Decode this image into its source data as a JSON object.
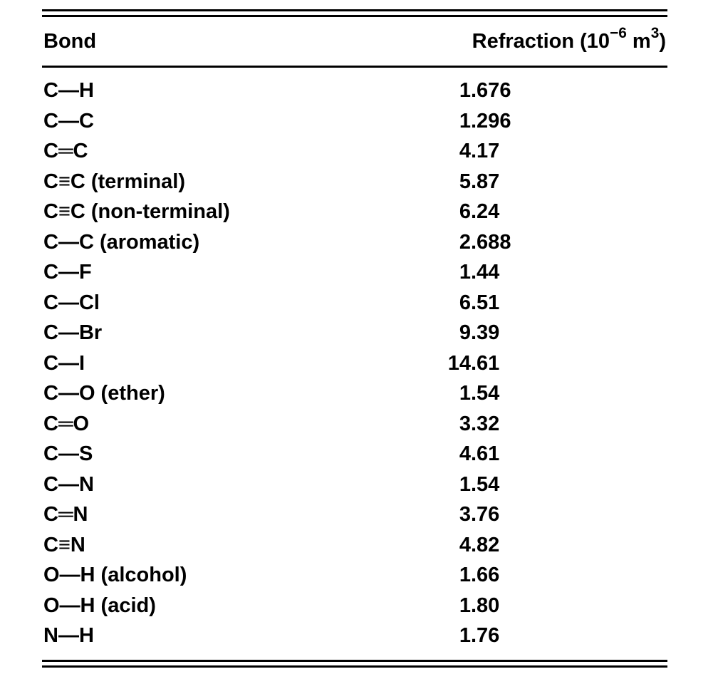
{
  "page": {
    "background_color": "#ffffff",
    "text_color": "#000000"
  },
  "table": {
    "header": {
      "bond_label": "Bond",
      "refraction_label_parts": {
        "base1": "Refraction (10",
        "sup1": "−6",
        "base2": " m",
        "sup2": "3",
        "base3": ")"
      }
    },
    "rows": [
      {
        "bond": "C—H",
        "refraction": "1.676"
      },
      {
        "bond": "C—C",
        "refraction": "1.296"
      },
      {
        "bond": "C═C",
        "refraction": "4.17"
      },
      {
        "bond": "C≡C (terminal)",
        "refraction": "5.87"
      },
      {
        "bond": "C≡C (non-terminal)",
        "refraction": "6.24"
      },
      {
        "bond": "C—C (aromatic)",
        "refraction": "2.688"
      },
      {
        "bond": "C—F",
        "refraction": "1.44"
      },
      {
        "bond": "C—Cl",
        "refraction": "6.51"
      },
      {
        "bond": "C—Br",
        "refraction": "9.39"
      },
      {
        "bond": "C—I",
        "refraction": "14.61"
      },
      {
        "bond": "C—O (ether)",
        "refraction": "1.54"
      },
      {
        "bond": "C═O",
        "refraction": "3.32"
      },
      {
        "bond": "C—S",
        "refraction": "4.61"
      },
      {
        "bond": "C—N",
        "refraction": "1.54"
      },
      {
        "bond": "C═N",
        "refraction": "3.76"
      },
      {
        "bond": "C≡N",
        "refraction": "4.82"
      },
      {
        "bond": "O—H (alcohol)",
        "refraction": "1.66"
      },
      {
        "bond": "O—H (acid)",
        "refraction": "1.80"
      },
      {
        "bond": "N—H",
        "refraction": "1.76"
      }
    ]
  }
}
